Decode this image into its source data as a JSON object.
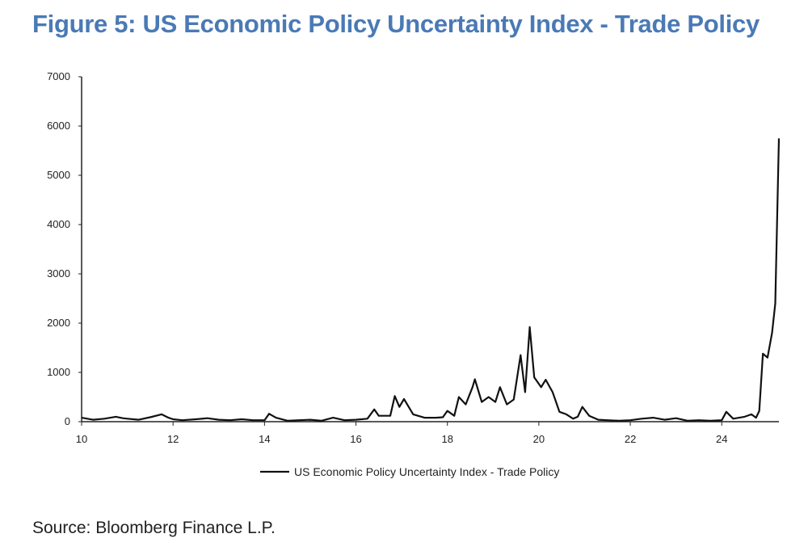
{
  "title": "Figure 5: US Economic Policy Uncertainty Index - Trade Policy",
  "source": "Source: Bloomberg Finance L.P.",
  "chart_data": {
    "type": "line",
    "title": "",
    "xlabel": "",
    "ylabel": "",
    "xlim": [
      10,
      25.25
    ],
    "ylim": [
      0,
      7000
    ],
    "x_ticks": [
      10,
      12,
      14,
      16,
      18,
      20,
      22,
      24
    ],
    "y_ticks": [
      0,
      1000,
      2000,
      3000,
      4000,
      5000,
      6000,
      7000
    ],
    "grid": false,
    "legend": "bottom-center",
    "series": [
      {
        "name": "US Economic Policy Uncertainty Index - Trade Policy",
        "color": "#111111",
        "points": [
          [
            10.0,
            80
          ],
          [
            10.25,
            40
          ],
          [
            10.5,
            60
          ],
          [
            10.75,
            100
          ],
          [
            10.9,
            70
          ],
          [
            11.0,
            60
          ],
          [
            11.25,
            40
          ],
          [
            11.5,
            90
          ],
          [
            11.75,
            150
          ],
          [
            11.9,
            80
          ],
          [
            12.0,
            50
          ],
          [
            12.2,
            30
          ],
          [
            12.5,
            50
          ],
          [
            12.75,
            70
          ],
          [
            13.0,
            40
          ],
          [
            13.25,
            30
          ],
          [
            13.5,
            50
          ],
          [
            13.75,
            30
          ],
          [
            14.0,
            30
          ],
          [
            14.1,
            160
          ],
          [
            14.25,
            80
          ],
          [
            14.5,
            20
          ],
          [
            14.75,
            30
          ],
          [
            15.0,
            40
          ],
          [
            15.25,
            20
          ],
          [
            15.5,
            80
          ],
          [
            15.75,
            30
          ],
          [
            16.0,
            40
          ],
          [
            16.25,
            60
          ],
          [
            16.4,
            250
          ],
          [
            16.5,
            120
          ],
          [
            16.75,
            120
          ],
          [
            16.85,
            520
          ],
          [
            16.95,
            300
          ],
          [
            17.05,
            460
          ],
          [
            17.25,
            150
          ],
          [
            17.5,
            80
          ],
          [
            17.75,
            80
          ],
          [
            17.9,
            90
          ],
          [
            18.0,
            220
          ],
          [
            18.15,
            120
          ],
          [
            18.25,
            500
          ],
          [
            18.4,
            350
          ],
          [
            18.55,
            700
          ],
          [
            18.6,
            860
          ],
          [
            18.75,
            400
          ],
          [
            18.9,
            500
          ],
          [
            19.05,
            400
          ],
          [
            19.15,
            700
          ],
          [
            19.3,
            350
          ],
          [
            19.45,
            450
          ],
          [
            19.6,
            1350
          ],
          [
            19.7,
            600
          ],
          [
            19.8,
            1920
          ],
          [
            19.9,
            900
          ],
          [
            20.05,
            700
          ],
          [
            20.15,
            850
          ],
          [
            20.3,
            600
          ],
          [
            20.45,
            200
          ],
          [
            20.6,
            150
          ],
          [
            20.75,
            60
          ],
          [
            20.85,
            100
          ],
          [
            20.95,
            300
          ],
          [
            21.1,
            120
          ],
          [
            21.3,
            40
          ],
          [
            21.5,
            30
          ],
          [
            21.75,
            20
          ],
          [
            22.0,
            30
          ],
          [
            22.25,
            60
          ],
          [
            22.5,
            80
          ],
          [
            22.75,
            40
          ],
          [
            23.0,
            70
          ],
          [
            23.25,
            20
          ],
          [
            23.5,
            30
          ],
          [
            23.75,
            20
          ],
          [
            24.0,
            30
          ],
          [
            24.1,
            200
          ],
          [
            24.25,
            60
          ],
          [
            24.5,
            100
          ],
          [
            24.65,
            150
          ],
          [
            24.75,
            80
          ],
          [
            24.82,
            220
          ],
          [
            24.9,
            1380
          ],
          [
            25.0,
            1300
          ],
          [
            25.1,
            1800
          ],
          [
            25.17,
            2400
          ],
          [
            25.25,
            5750
          ]
        ]
      }
    ]
  }
}
